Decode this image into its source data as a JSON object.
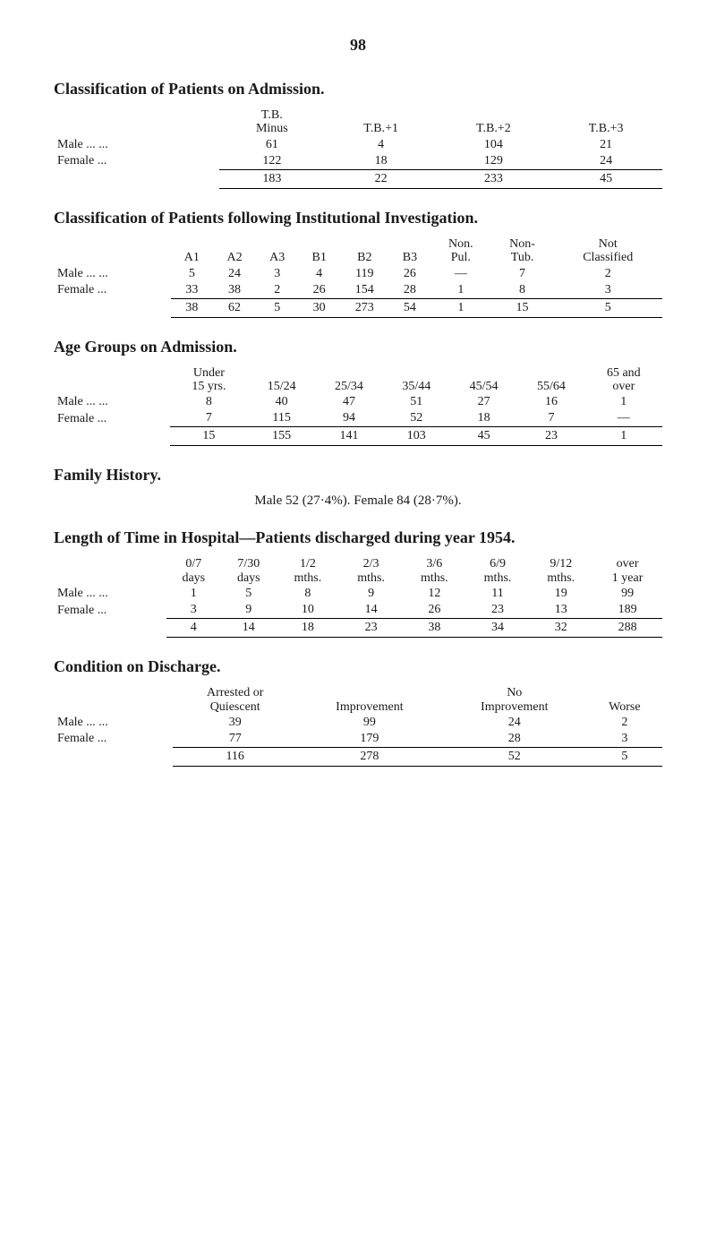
{
  "page_number": "98",
  "section1": {
    "heading": "Classification of Patients on Admission.",
    "columns": [
      "",
      "T.B. Minus",
      "T.B.+1",
      "T.B.+2",
      "T.B.+3"
    ],
    "rows": [
      {
        "label": "Male   ...         ...",
        "values": [
          "61",
          "4",
          "104",
          "21"
        ]
      },
      {
        "label": "Female            ...",
        "values": [
          "122",
          "18",
          "129",
          "24"
        ]
      }
    ],
    "totals": [
      "183",
      "22",
      "233",
      "45"
    ]
  },
  "section2": {
    "heading": "Classification of Patients following Institutional Investigation.",
    "columns": [
      "",
      "A1",
      "A2",
      "A3",
      "B1",
      "B2",
      "B3",
      "Non. Pul.",
      "Non- Tub.",
      "Not Classified"
    ],
    "rows": [
      {
        "label": "Male ...         ...",
        "values": [
          "5",
          "24",
          "3",
          "4",
          "119",
          "26",
          "—",
          "7",
          "2"
        ]
      },
      {
        "label": "Female          ...",
        "values": [
          "33",
          "38",
          "2",
          "26",
          "154",
          "28",
          "1",
          "8",
          "3"
        ]
      }
    ],
    "totals": [
      "38",
      "62",
      "5",
      "30",
      "273",
      "54",
      "1",
      "15",
      "5"
    ]
  },
  "section3": {
    "heading": "Age Groups on Admission.",
    "columns": [
      "",
      "Under 15 yrs.",
      "15/24",
      "25/34",
      "35/44",
      "45/54",
      "55/64",
      "65 and over"
    ],
    "rows": [
      {
        "label": "Male ...         ...",
        "values": [
          "8",
          "40",
          "47",
          "51",
          "27",
          "16",
          "1"
        ]
      },
      {
        "label": "Female          ...",
        "values": [
          "7",
          "115",
          "94",
          "52",
          "18",
          "7",
          "—"
        ]
      }
    ],
    "totals": [
      "15",
      "155",
      "141",
      "103",
      "45",
      "23",
      "1"
    ]
  },
  "section4": {
    "heading": "Family History.",
    "line": "Male 52 (27·4%).        Female 84 (28·7%)."
  },
  "section5": {
    "heading": "Length of Time in Hospital—Patients discharged during year 1954.",
    "columns": [
      "",
      "0/7 days",
      "7/30 days",
      "1/2 mths.",
      "2/3 mths.",
      "3/6 mths.",
      "6/9 mths.",
      "9/12 mths.",
      "over 1 year"
    ],
    "rows": [
      {
        "label": "Male   ...         ...",
        "values": [
          "1",
          "5",
          "8",
          "9",
          "12",
          "11",
          "19",
          "99"
        ]
      },
      {
        "label": "Female            ...",
        "values": [
          "3",
          "9",
          "10",
          "14",
          "26",
          "23",
          "13",
          "189"
        ]
      }
    ],
    "totals": [
      "4",
      "14",
      "18",
      "23",
      "38",
      "34",
      "32",
      "288"
    ]
  },
  "section6": {
    "heading": "Condition on Discharge.",
    "columns": [
      "",
      "Arrested or Quiescent",
      "Improvement",
      "No Improvement",
      "Worse"
    ],
    "rows": [
      {
        "label": "Male   ...         ...",
        "values": [
          "39",
          "99",
          "24",
          "2"
        ]
      },
      {
        "label": "Female            ...",
        "values": [
          "77",
          "179",
          "28",
          "3"
        ]
      }
    ],
    "totals": [
      "116",
      "278",
      "52",
      "5"
    ]
  }
}
